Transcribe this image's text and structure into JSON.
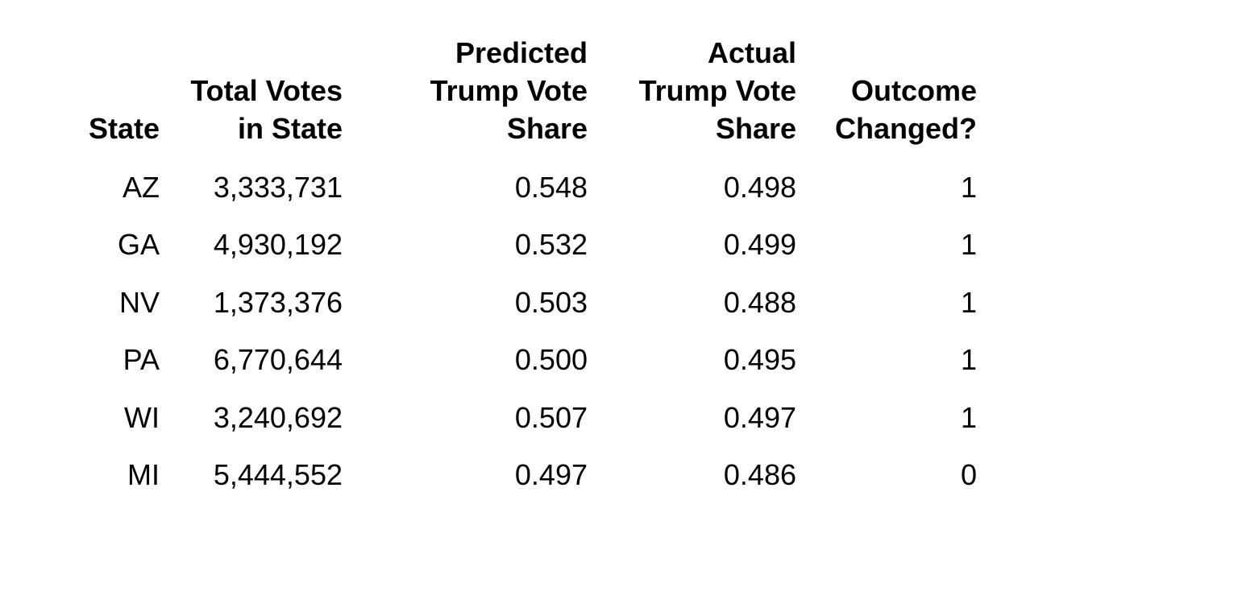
{
  "page": {
    "background_color": "#ffffff",
    "text_color": "#000000"
  },
  "table": {
    "header": {
      "state": {
        "line1": "State"
      },
      "total_votes": {
        "line1": "Total Votes",
        "line2": "in State"
      },
      "predicted": {
        "line1": "Predicted",
        "line2": "Trump Vote",
        "line3": "Share"
      },
      "actual": {
        "line1": "Actual",
        "line2": "Trump Vote",
        "line3": "Share"
      },
      "outcome": {
        "line1": "Outcome",
        "line2": "Changed?"
      }
    },
    "rows": [
      {
        "state": "AZ",
        "total_votes": "3,333,731",
        "predicted": "0.548",
        "actual": "0.498",
        "outcome": "1"
      },
      {
        "state": "GA",
        "total_votes": "4,930,192",
        "predicted": "0.532",
        "actual": "0.499",
        "outcome": "1"
      },
      {
        "state": "NV",
        "total_votes": "1,373,376",
        "predicted": "0.503",
        "actual": "0.488",
        "outcome": "1"
      },
      {
        "state": "PA",
        "total_votes": "6,770,644",
        "predicted": "0.500",
        "actual": "0.495",
        "outcome": "1"
      },
      {
        "state": "WI",
        "total_votes": "3,240,692",
        "predicted": "0.507",
        "actual": "0.497",
        "outcome": "1"
      },
      {
        "state": "MI",
        "total_votes": "5,444,552",
        "predicted": "0.497",
        "actual": "0.486",
        "outcome": "0"
      }
    ]
  },
  "chart_data": {
    "type": "table",
    "title": "",
    "columns": [
      "State",
      "Total Votes in State",
      "Predicted Trump Vote Share",
      "Actual Trump Vote Share",
      "Outcome Changed?"
    ],
    "rows": [
      [
        "AZ",
        3333731,
        0.548,
        0.498,
        1
      ],
      [
        "GA",
        4930192,
        0.532,
        0.499,
        1
      ],
      [
        "NV",
        1373376,
        0.503,
        0.488,
        1
      ],
      [
        "PA",
        6770644,
        0.5,
        0.495,
        1
      ],
      [
        "WI",
        3240692,
        0.507,
        0.497,
        1
      ],
      [
        "MI",
        5444552,
        0.497,
        0.486,
        0
      ]
    ]
  }
}
